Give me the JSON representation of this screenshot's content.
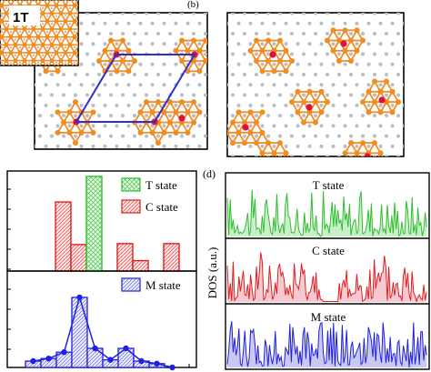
{
  "panels": {
    "b_label": "(b)",
    "d_label": "(d)",
    "inset_label": "1T"
  },
  "legend_top": [
    "T state",
    "C state"
  ],
  "legend_bottom": [
    "M state"
  ],
  "dos": {
    "ylabel": "DOS (a.u.)",
    "t_label": "T state",
    "c_label": "C state",
    "m_label": "M state"
  },
  "colors": {
    "atom_orange": "#f08c24",
    "star_center": "#e0103c",
    "small_atom": "#b8bec4",
    "cell_line": "#2f2fd0",
    "t_green": "#2fbf2f",
    "c_red": "#e01f1f",
    "m_blue": "#2020e0"
  },
  "chart_data": [
    {
      "type": "bar",
      "panel": "bar histogram (top)",
      "series": [
        {
          "name": "C state",
          "values": [
            0.0,
            0.73,
            0.28,
            0.0,
            0.0,
            0.29,
            0.11,
            0.0,
            0.29
          ]
        },
        {
          "name": "T state",
          "values": [
            0.0,
            0.0,
            0.0,
            1.0,
            0.0,
            0.0,
            0.0,
            0.0,
            0.0
          ]
        }
      ]
    },
    {
      "type": "bar",
      "panel": "bar histogram (bottom)",
      "series": [
        {
          "name": "M state",
          "values": [
            0.05,
            0.07,
            0.12,
            0.55,
            0.15,
            0.06,
            0.15,
            0.05,
            0.03,
            0.0
          ]
        }
      ]
    },
    {
      "type": "line",
      "panel": "DOS spectra",
      "ylabel": "DOS (a.u.)",
      "series": [
        {
          "name": "T state"
        },
        {
          "name": "C state"
        },
        {
          "name": "M state"
        }
      ]
    }
  ]
}
